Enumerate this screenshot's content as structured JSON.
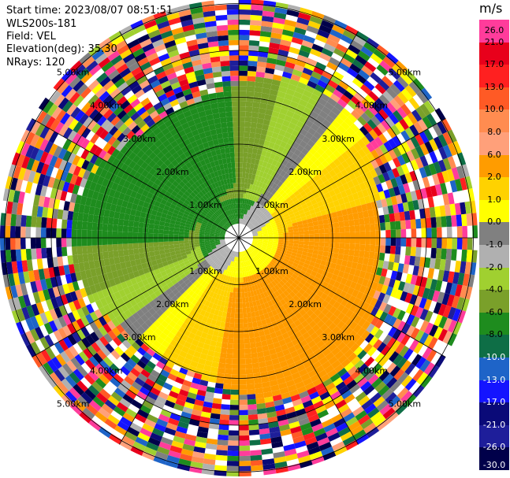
{
  "header": {
    "start_time": "Start time: 2023/08/07 08:51:51",
    "instrument": "WLS200s-181",
    "field": "Field: VEL",
    "elevation": "Elevation(deg): 35.30",
    "nrays": "NRays: 120"
  },
  "range_labels": [
    "1.00km",
    "2.00km",
    "3.00km",
    "4.00km",
    "5.00km"
  ],
  "colorbar": {
    "unit": "m/s",
    "levels": [
      "26.0",
      "21.0",
      "17.0",
      "13.0",
      "10.0",
      "8.0",
      "6.0",
      "2.0",
      "1.0",
      "0.0",
      "-1.0",
      "-2.0",
      "-4.0",
      "-6.0",
      "-8.0",
      "-10.0",
      "-13.0",
      "-17.0",
      "-21.0",
      "-26.0",
      "-30.0"
    ],
    "colors": [
      "#ff3c9b",
      "#e8001b",
      "#ff2020",
      "#ff5a25",
      "#ff8c50",
      "#ffa07a",
      "#ff9c00",
      "#ffd200",
      "#ffff00",
      "#808080",
      "#b0b0b0",
      "#a0d030",
      "#7aa02a",
      "#1e8c1e",
      "#0e6e46",
      "#1e64c8",
      "#1414ff",
      "#0a0a78",
      "#1e1e9a",
      "#00004a"
    ]
  }
}
